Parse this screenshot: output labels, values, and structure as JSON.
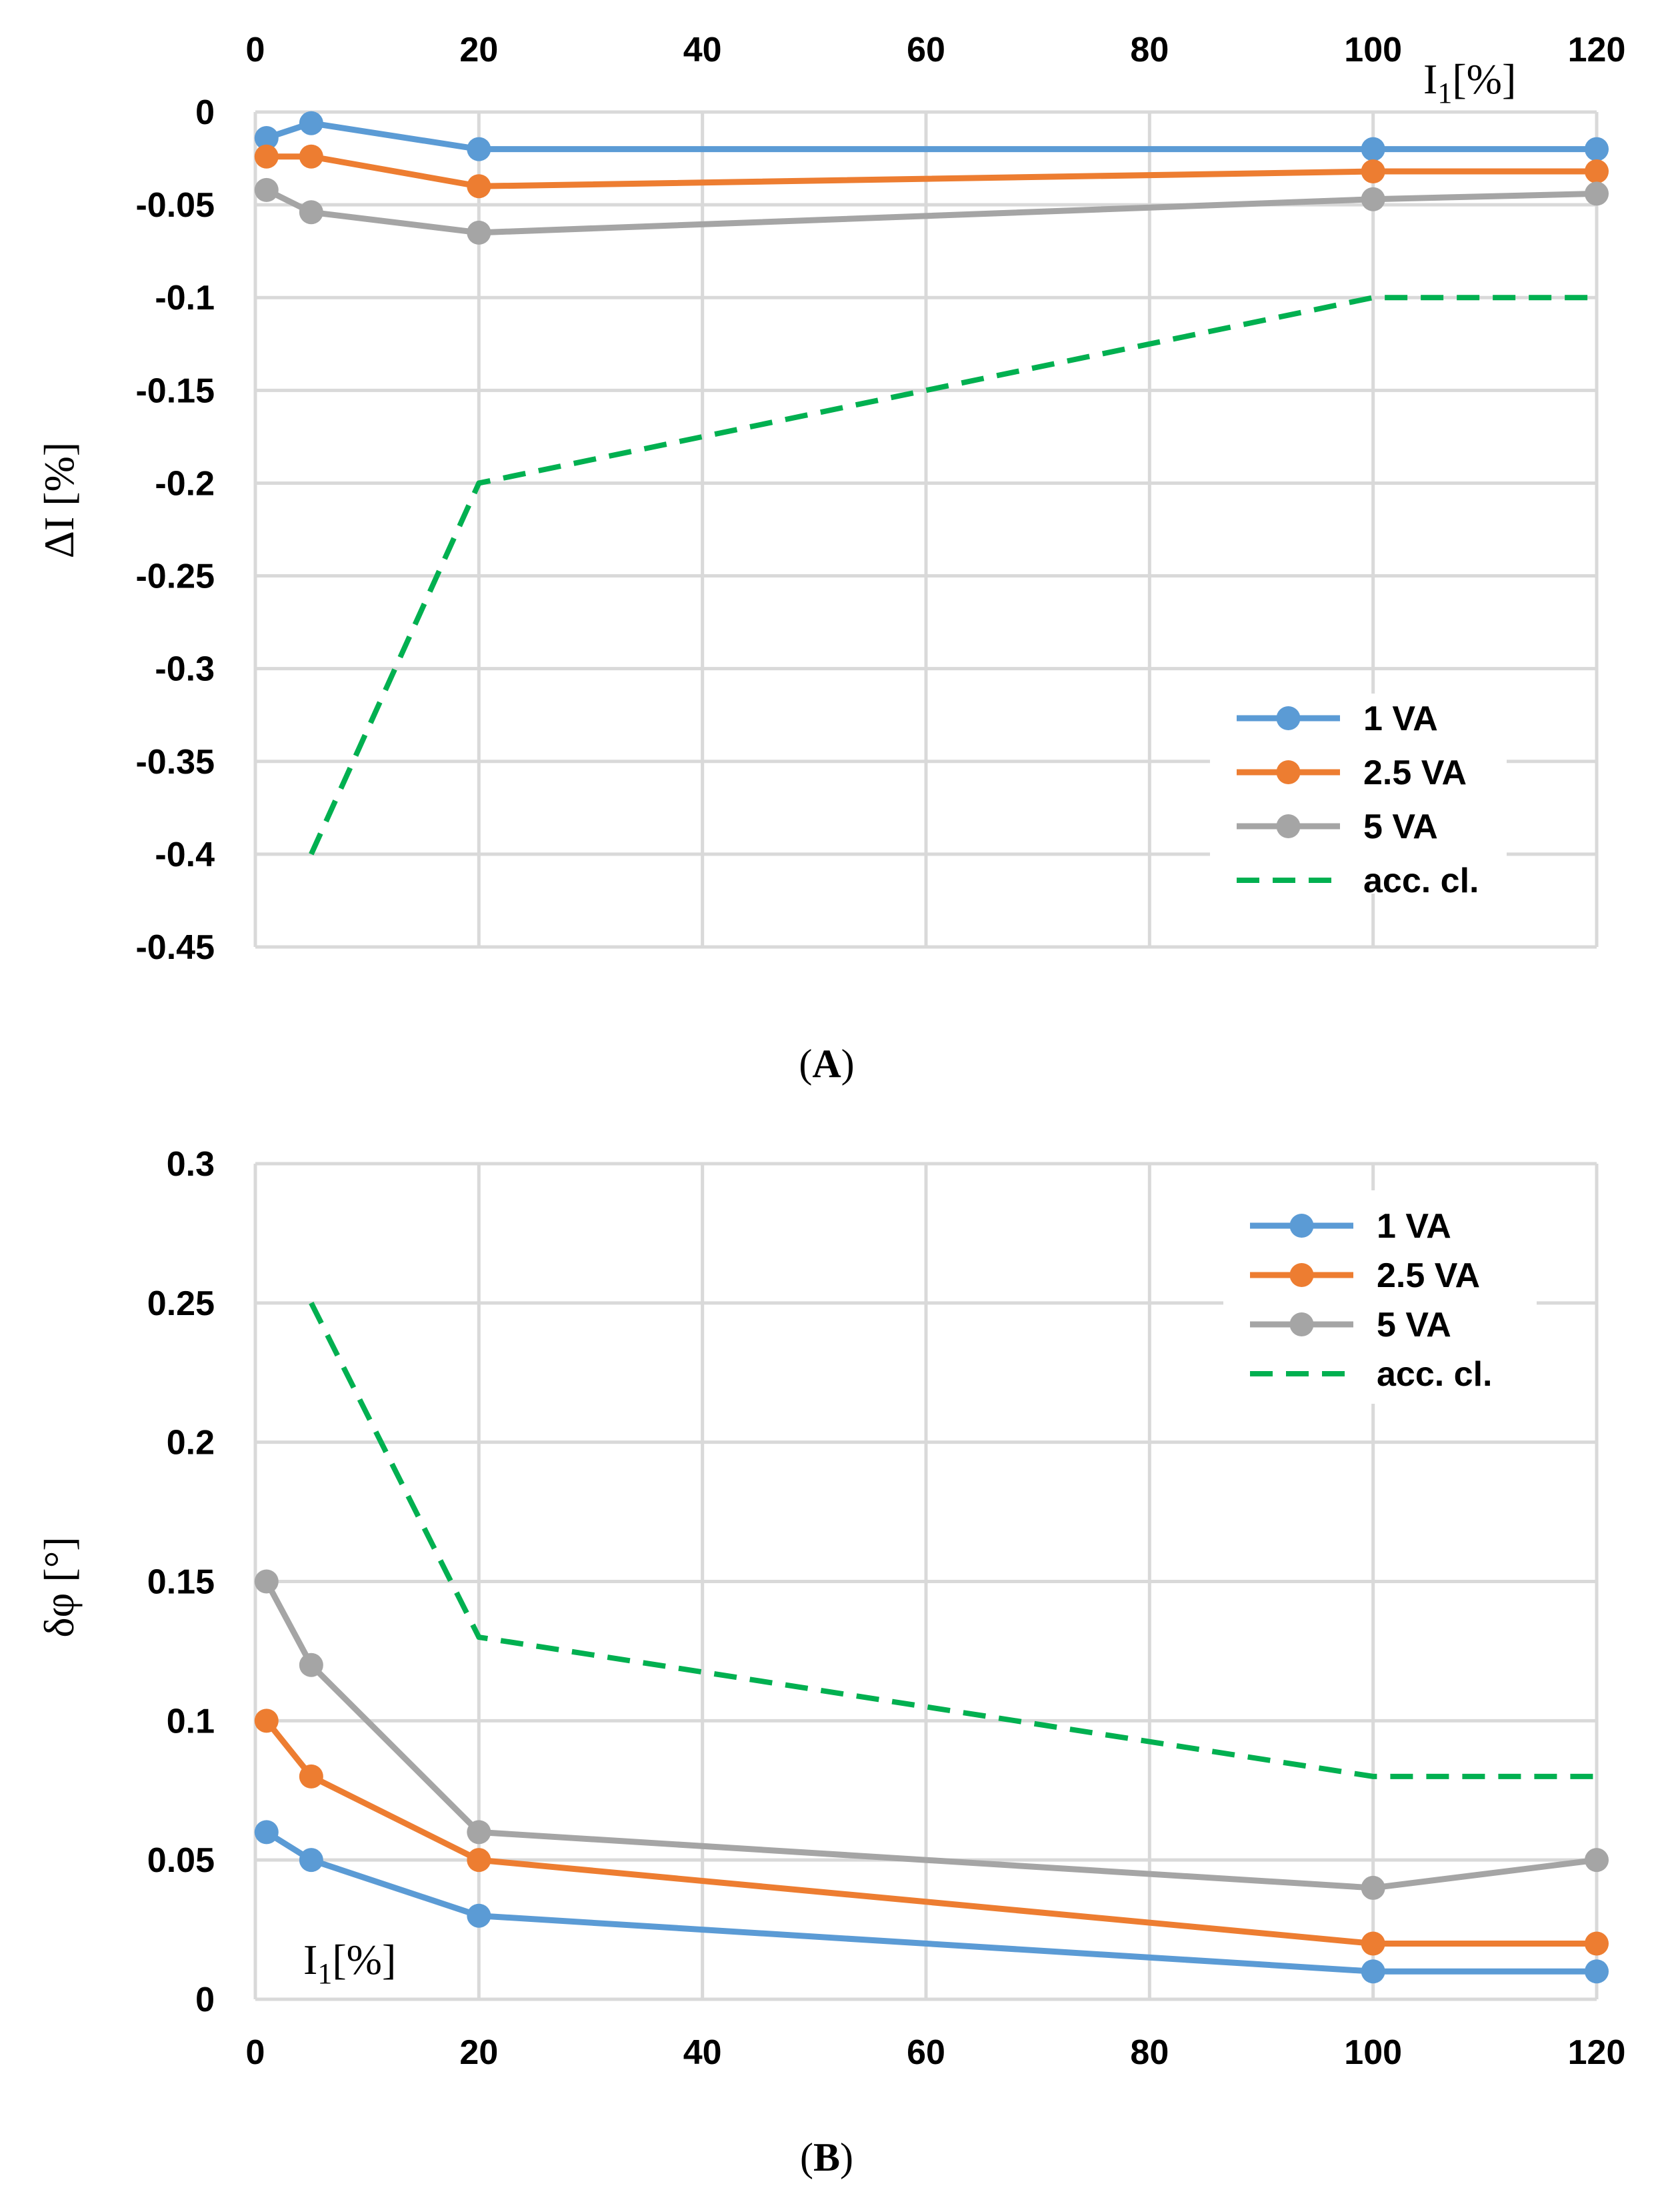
{
  "colors": {
    "va1": "#5b9bd5",
    "va25": "#ed7d31",
    "va5": "#a5a5a5",
    "acc": "#00b050",
    "grid": "#d9d9d9"
  },
  "chart_data": [
    {
      "id": "A",
      "type": "line",
      "caption_open": "(",
      "caption_letter": "A",
      "caption_close": ")",
      "xlabel_main": "I",
      "xlabel_sub": "1",
      "xlabel_rest": "[%]",
      "ylabel": "ΔI [%]",
      "x_axis_position": "top",
      "xlim": [
        0,
        120
      ],
      "ylim": [
        -0.45,
        0
      ],
      "xticks": [
        0,
        20,
        40,
        60,
        80,
        100,
        120
      ],
      "xtick_labels": [
        "0",
        "20",
        "40",
        "60",
        "80",
        "100",
        "120"
      ],
      "yticks": [
        0,
        -0.05,
        -0.1,
        -0.15,
        -0.2,
        -0.25,
        -0.3,
        -0.35,
        -0.4,
        -0.45
      ],
      "ytick_labels": [
        "0",
        "-0.05",
        "-0.1",
        "-0.15",
        "-0.2",
        "-0.25",
        "-0.3",
        "-0.35",
        "-0.4",
        "-0.45"
      ],
      "grid": true,
      "legend_position": "bottom-right",
      "series": [
        {
          "name": "1 VA",
          "color_key": "va1",
          "dashed": false,
          "markers": true,
          "x": [
            1,
            5,
            20,
            100,
            120
          ],
          "y": [
            -0.014,
            -0.006,
            -0.02,
            -0.02,
            -0.02
          ]
        },
        {
          "name": "2.5 VA",
          "color_key": "va25",
          "dashed": false,
          "markers": true,
          "x": [
            1,
            5,
            20,
            100,
            120
          ],
          "y": [
            -0.024,
            -0.024,
            -0.04,
            -0.032,
            -0.032
          ]
        },
        {
          "name": "5 VA",
          "color_key": "va5",
          "dashed": false,
          "markers": true,
          "x": [
            1,
            5,
            20,
            100,
            120
          ],
          "y": [
            -0.042,
            -0.054,
            -0.065,
            -0.047,
            -0.044
          ]
        },
        {
          "name": "acc. cl.",
          "color_key": "acc",
          "dashed": true,
          "markers": false,
          "x": [
            5,
            20,
            100,
            120
          ],
          "y": [
            -0.4,
            -0.2,
            -0.1,
            -0.1
          ]
        }
      ]
    },
    {
      "id": "B",
      "type": "line",
      "caption_open": "(",
      "caption_letter": "B",
      "caption_close": ")",
      "xlabel_main": "I",
      "xlabel_sub": "1",
      "xlabel_rest": "[%]",
      "ylabel": "δφ [°]",
      "x_axis_position": "bottom",
      "xlim": [
        0,
        120
      ],
      "ylim": [
        0,
        0.3
      ],
      "xticks": [
        0,
        20,
        40,
        60,
        80,
        100,
        120
      ],
      "xtick_labels": [
        "0",
        "20",
        "40",
        "60",
        "80",
        "100",
        "120"
      ],
      "yticks": [
        0,
        0.05,
        0.1,
        0.15,
        0.2,
        0.25,
        0.3
      ],
      "ytick_labels": [
        "0",
        "0.05",
        "0.1",
        "0.15",
        "0.2",
        "0.25",
        "0.3"
      ],
      "grid": true,
      "legend_position": "top-right",
      "series": [
        {
          "name": "1 VA",
          "color_key": "va1",
          "dashed": false,
          "markers": true,
          "x": [
            1,
            5,
            20,
            100,
            120
          ],
          "y": [
            0.06,
            0.05,
            0.03,
            0.01,
            0.01
          ]
        },
        {
          "name": "2.5 VA",
          "color_key": "va25",
          "dashed": false,
          "markers": true,
          "x": [
            1,
            5,
            20,
            100,
            120
          ],
          "y": [
            0.1,
            0.08,
            0.05,
            0.02,
            0.02
          ]
        },
        {
          "name": "5 VA",
          "color_key": "va5",
          "dashed": false,
          "markers": true,
          "x": [
            1,
            5,
            20,
            100,
            120
          ],
          "y": [
            0.15,
            0.12,
            0.06,
            0.04,
            0.05
          ]
        },
        {
          "name": "acc. cl.",
          "color_key": "acc",
          "dashed": true,
          "markers": false,
          "x": [
            5,
            20,
            100,
            120
          ],
          "y": [
            0.25,
            0.13,
            0.08,
            0.08
          ]
        }
      ]
    }
  ]
}
